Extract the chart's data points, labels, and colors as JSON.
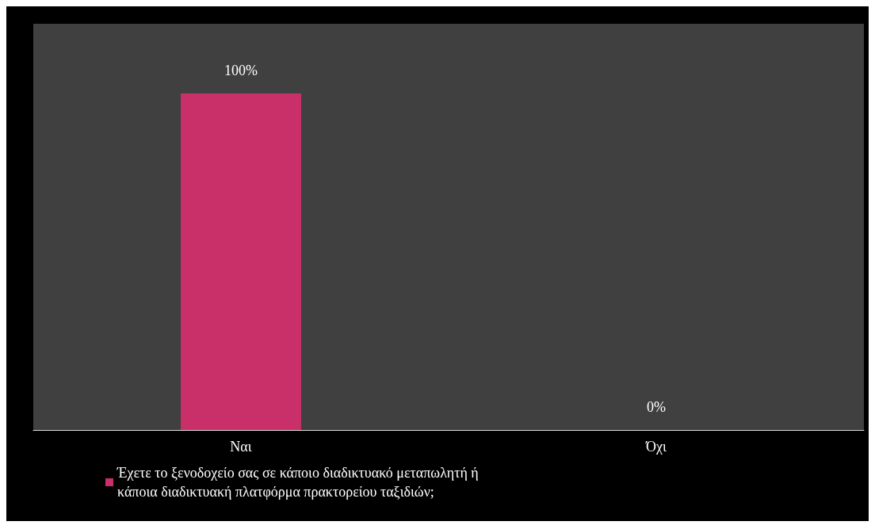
{
  "chart_data": {
    "type": "bar",
    "categories": [
      "Ναι",
      "Όχι"
    ],
    "series": [
      {
        "name": "Έχετε το ξενοδοχείο σας σε κάποιο διαδικτυακό μεταπωλητή ή κάποια διαδικτυακή πλατφόρμα πρακτορείου ταξιδιών;",
        "color": "#c9306a",
        "values": [
          100,
          0
        ],
        "value_labels": [
          "100%",
          "0%"
        ]
      }
    ],
    "ylim": [
      0,
      100
    ],
    "legend": "bottom"
  }
}
